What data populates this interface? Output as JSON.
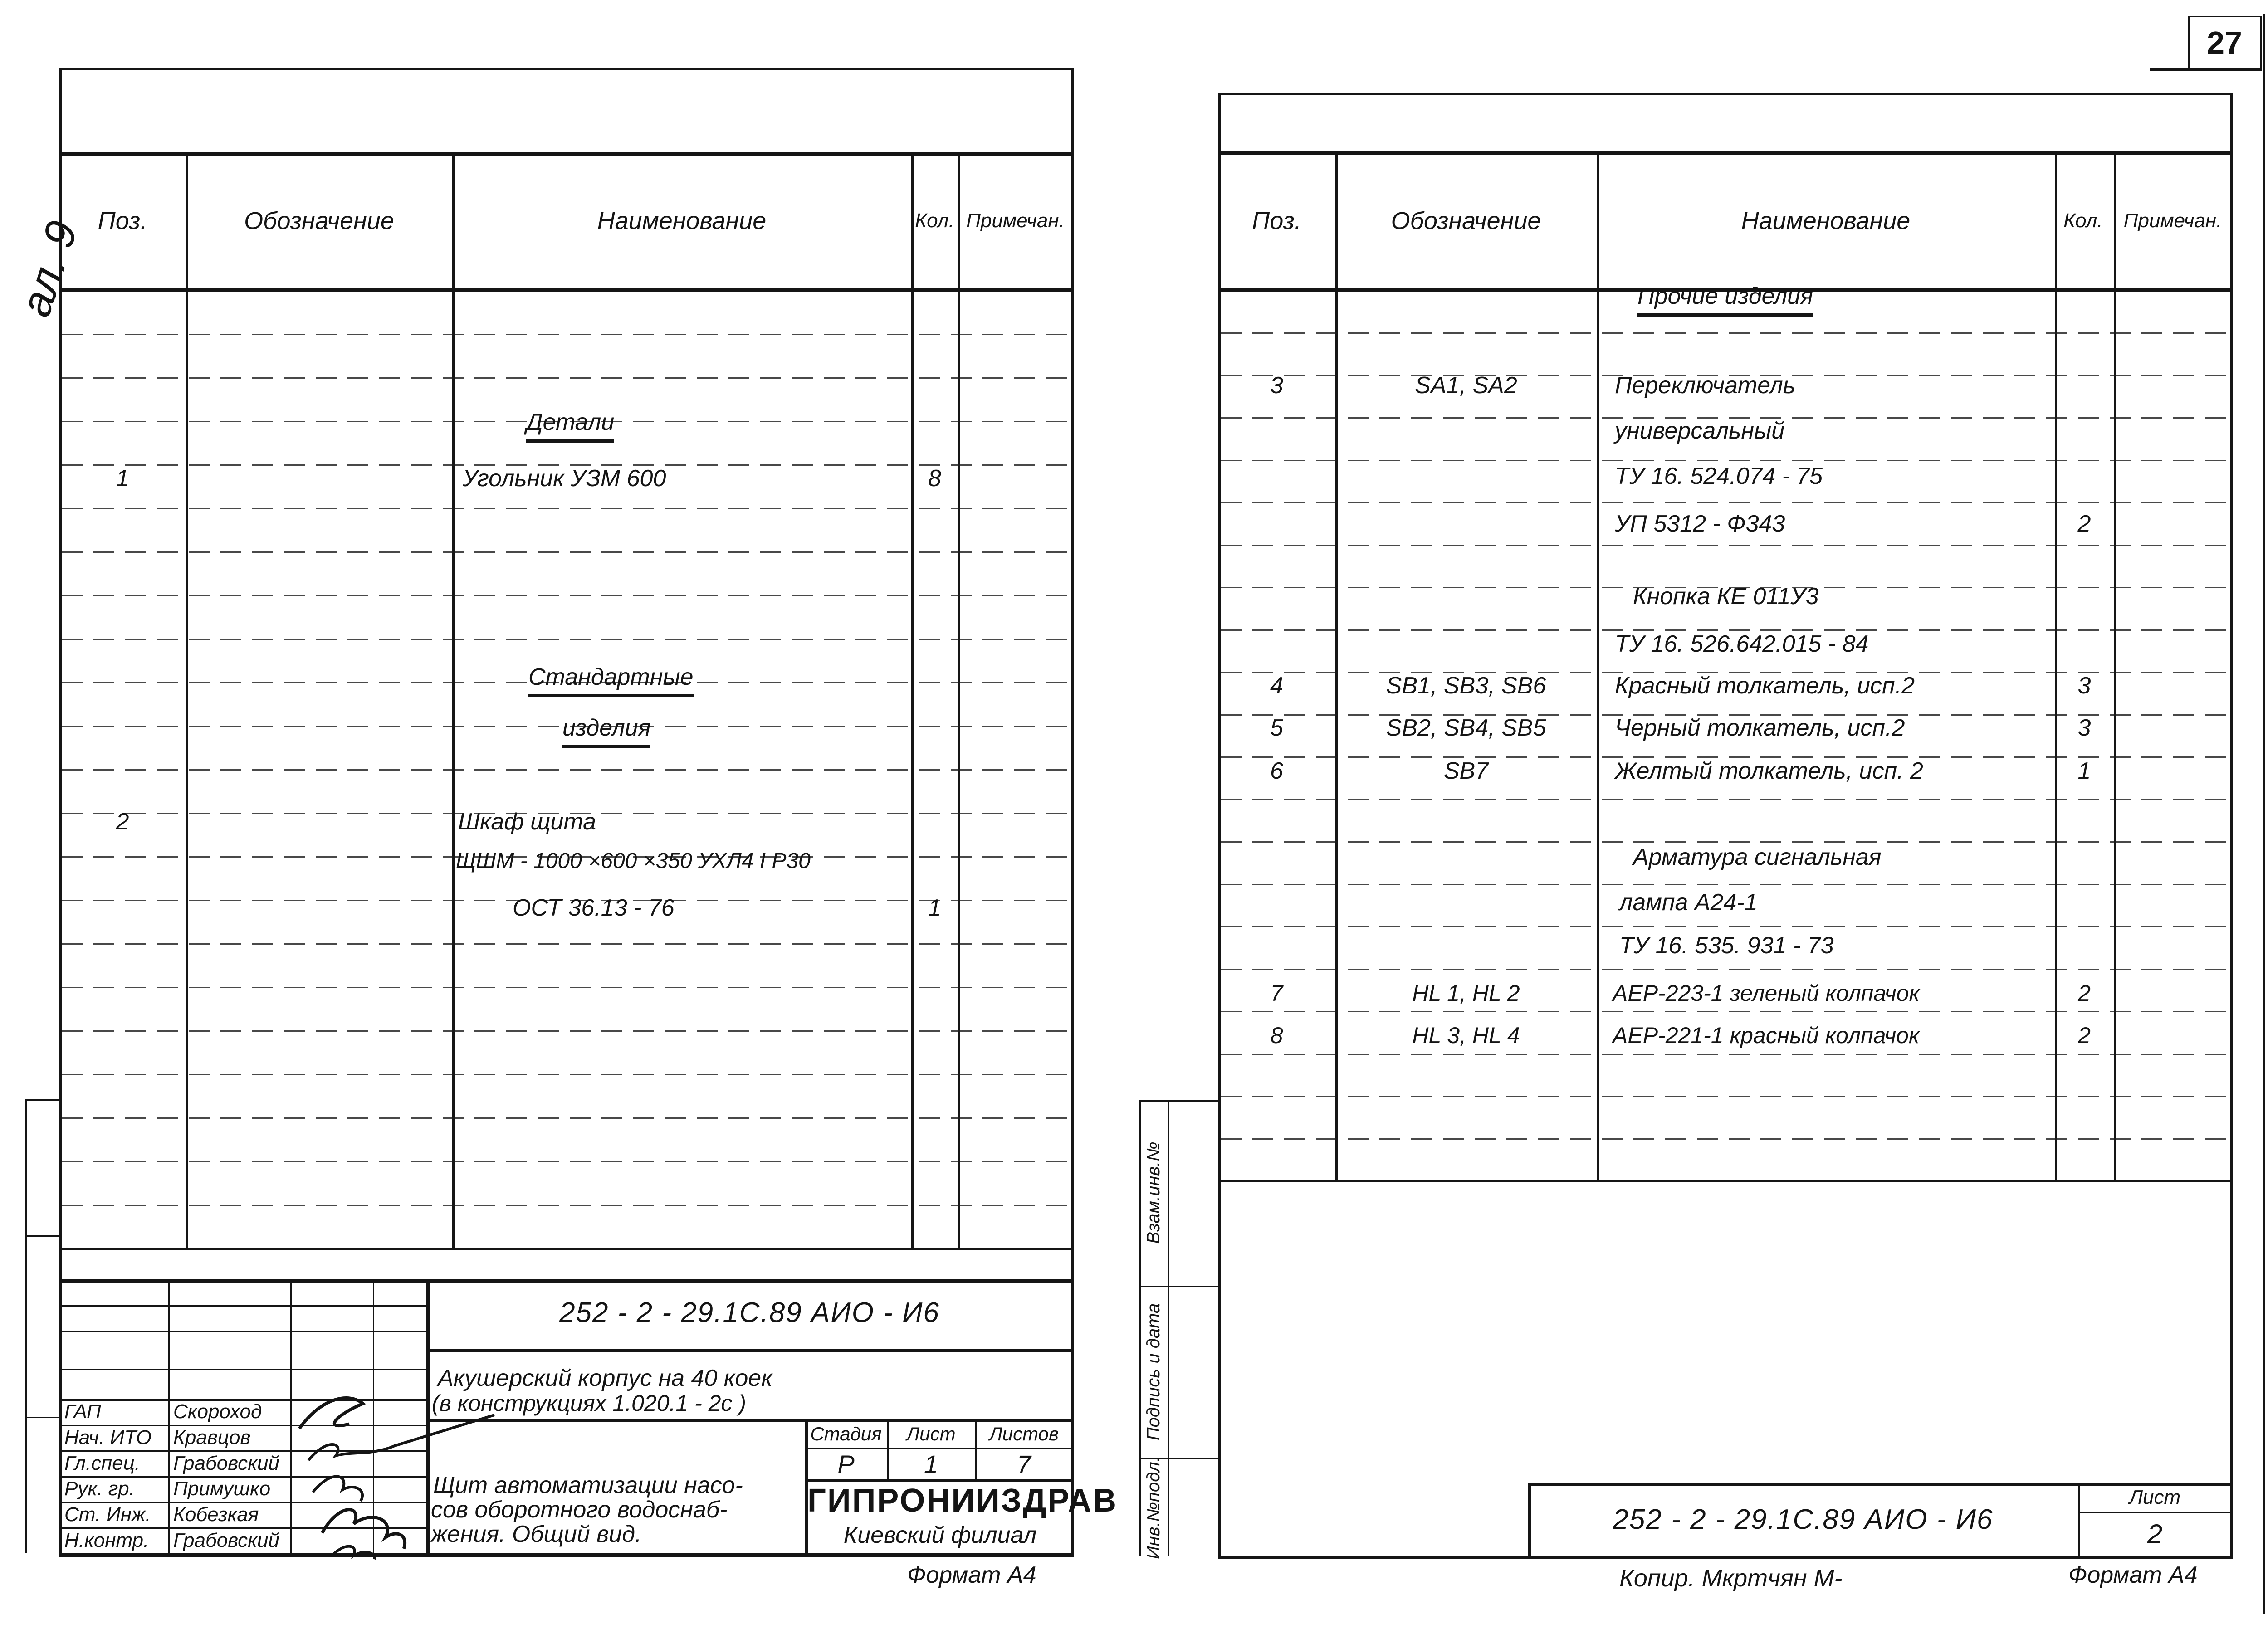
{
  "page_number": "27",
  "margin_note": "ал. 9",
  "table_headers": {
    "pos": "Поз.",
    "designation": "Обозначение",
    "name": "Наименование",
    "qty": "Кол.",
    "note": "Примечан."
  },
  "left_sheet": {
    "rows": [
      {
        "name": "Детали",
        "underline": true
      },
      {
        "pos": "1",
        "name": "Угольник   УЗМ 600",
        "qty": "8"
      },
      {
        "name": "Стандартные",
        "underline": true
      },
      {
        "name": "изделия",
        "underline": true
      },
      {
        "pos": "2",
        "name": "Шкаф    щита"
      },
      {
        "name": "ЩШМ - 1000 ×600 ×350  УХЛ4 I Р30"
      },
      {
        "name": "ОСТ  36.13 - 76",
        "qty": "1"
      }
    ],
    "title_block": {
      "doc_number": "252 - 2 - 29.1С.89        АИО - И6",
      "project_line1": "Акушерский  корпус  на  40  коек",
      "project_line2": "(в конструкциях    1.020.1 - 2с )",
      "stage_label": "Стадия",
      "sheet_label": "Лист",
      "sheets_label": "Листов",
      "stage": "Р",
      "sheet": "1",
      "sheets": "7",
      "subject_line1": "Щит автоматизации насо-",
      "subject_line2": "сов оборотного водоснаб-",
      "subject_line3": "жения. Общий  вид.",
      "org_name": "ГИПРОНИИЗДРАВ",
      "org_branch": "Киевский   филиал",
      "signatures": [
        {
          "role": "ГАП",
          "name": "Скороход"
        },
        {
          "role": "Нач. ИТО",
          "name": "Кравцов"
        },
        {
          "role": "Гл.спец.",
          "name": "Грабовский"
        },
        {
          "role": "Рук. гр.",
          "name": "Примушко"
        },
        {
          "role": "Ст. Инж.",
          "name": "Кобезкая"
        },
        {
          "role": "Н.контр.",
          "name": "Грабовский"
        }
      ]
    },
    "format_note": "Формат А4"
  },
  "right_sheet": {
    "rows": [
      {
        "name": "Прочие  изделия",
        "underline": true
      },
      {
        "pos": "3",
        "designation": "SA1, SA2",
        "name": "Переключатель"
      },
      {
        "name": "универсальный"
      },
      {
        "name": "ТУ 16. 524.074 - 75"
      },
      {
        "name": "УП   5312 - Ф343",
        "qty": "2"
      },
      {
        "name": "Кнопка   КЕ 011У3"
      },
      {
        "name": "ТУ 16. 526.642.015 - 84"
      },
      {
        "pos": "4",
        "designation": "SB1, SB3, SB6",
        "name": "Красный толкатель,  исп.2",
        "qty": "3"
      },
      {
        "pos": "5",
        "designation": "SB2, SB4, SB5",
        "name": "Черный толкатель,  исп.2",
        "qty": "3"
      },
      {
        "pos": "6",
        "designation": "SB7",
        "name": "Желтый толкатель, исп. 2",
        "qty": "1"
      },
      {
        "name": "Арматура  сигнальная"
      },
      {
        "name": "лампа    А24-1"
      },
      {
        "name": "ТУ 16. 535. 931 - 73"
      },
      {
        "pos": "7",
        "designation": "HL 1,  HL 2",
        "name": "АЕР-223-1  зеленый  колпачок",
        "qty": "2"
      },
      {
        "pos": "8",
        "designation": "HL 3, HL 4",
        "name": "АЕР-221-1  красный  колпачок",
        "qty": "2"
      }
    ],
    "margin_labels": [
      "Взам.инв.№",
      "Подпись и дата",
      "Инв.№подл."
    ],
    "title_block": {
      "doc_number": "252 - 2 - 29.1С.89    АИО - И6",
      "sheet_label": "Лист",
      "sheet": "2"
    },
    "copy_note": "Копир. Мкртчян М-",
    "format_note": "Формат А4"
  }
}
